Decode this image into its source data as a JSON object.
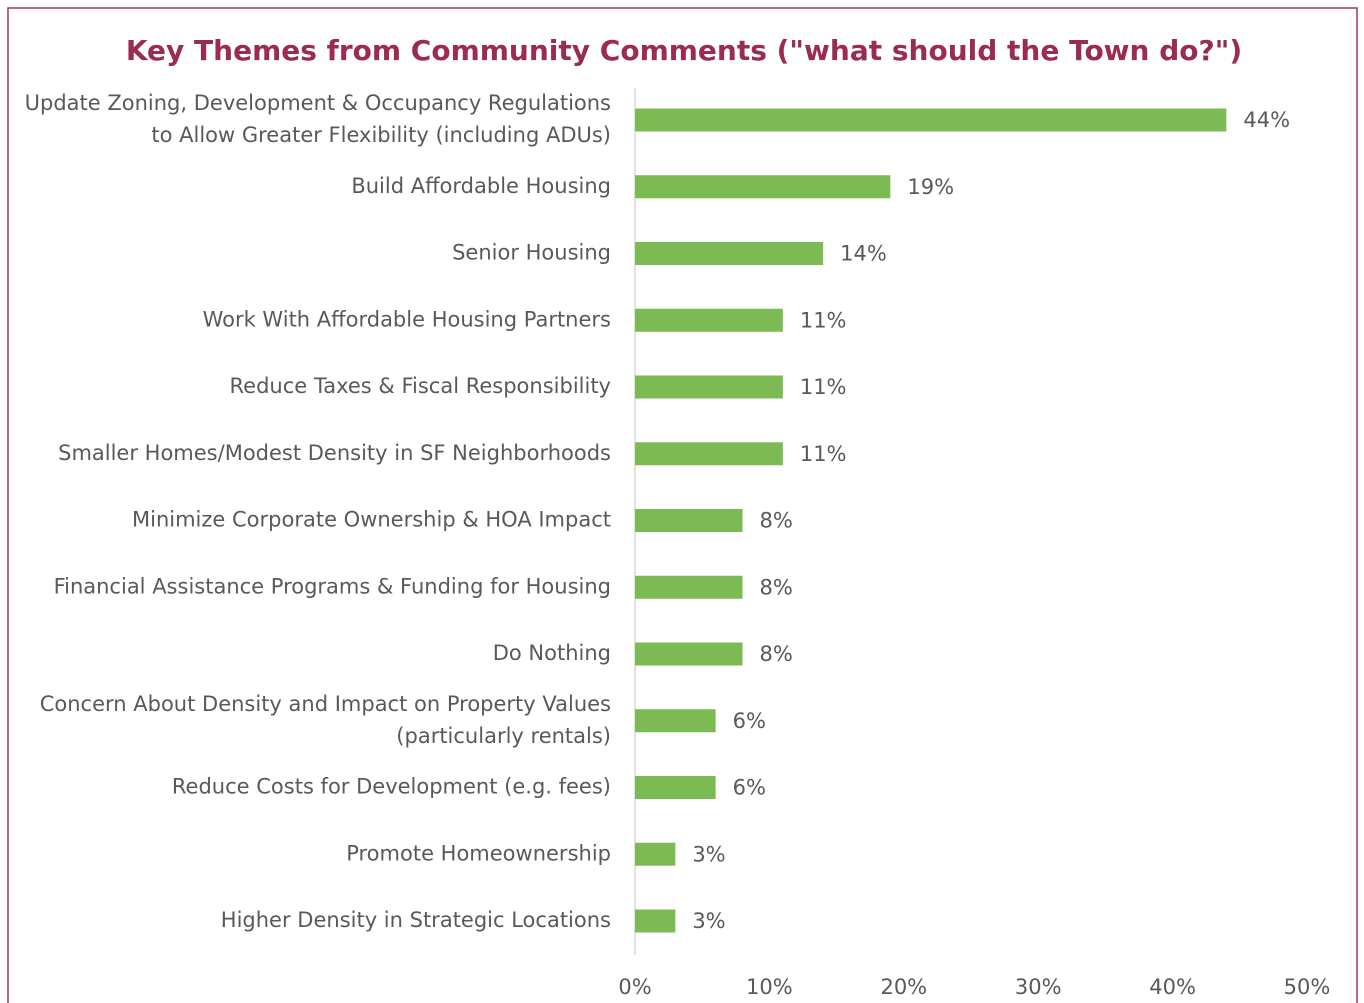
{
  "chart_data": {
    "type": "barh",
    "title": "Key Themes from Community Comments (\"what should the Town do?\")",
    "categories": [
      "Update Zoning, Development & Occupancy Regulations\nto Allow Greater Flexibility (including ADUs)",
      "Build Affordable Housing",
      "Senior Housing",
      "Work With Affordable Housing Partners",
      "Reduce Taxes & Fiscal Responsibility",
      "Smaller Homes/Modest Density in SF Neighborhoods",
      "Minimize Corporate Ownership & HOA Impact",
      "Financial Assistance Programs & Funding for Housing",
      "Do Nothing",
      "Concern About Density and Impact on Property Values\n(particularly rentals)",
      "Reduce Costs for Development (e.g. fees)",
      "Promote Homeownership",
      "Higher Density in Strategic Locations"
    ],
    "values": [
      44,
      19,
      14,
      11,
      11,
      11,
      8,
      8,
      8,
      6,
      6,
      3,
      3
    ],
    "value_labels": [
      "44%",
      "19%",
      "14%",
      "11%",
      "11%",
      "11%",
      "8%",
      "8%",
      "8%",
      "6%",
      "6%",
      "3%",
      "3%"
    ],
    "color": "#7cba53",
    "xlim": [
      0,
      50
    ],
    "xticks": [
      {
        "value": 0,
        "label": "0%"
      },
      {
        "value": 10,
        "label": "10%"
      },
      {
        "value": 20,
        "label": "20%"
      },
      {
        "value": 30,
        "label": "30%"
      },
      {
        "value": 40,
        "label": "40%"
      },
      {
        "value": 50,
        "label": "50%"
      }
    ],
    "grid": false
  }
}
